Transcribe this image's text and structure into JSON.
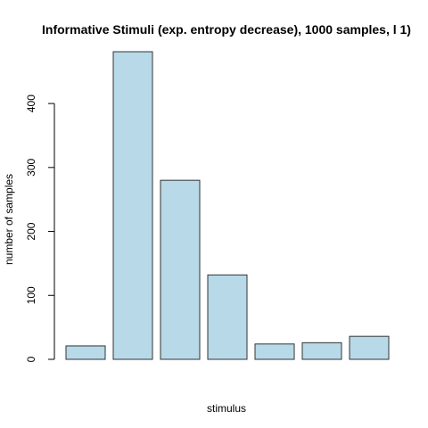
{
  "chart_data": {
    "type": "bar",
    "title": "Informative Stimuli (exp. entropy decrease), 1000 samples, l 1)",
    "xlabel": "stimulus",
    "ylabel": "number of samples",
    "categories": [
      "",
      "",
      "",
      "",
      "",
      "",
      ""
    ],
    "values": [
      21,
      481,
      280,
      132,
      24,
      26,
      36
    ],
    "ylim": [
      0,
      481
    ],
    "yticks": [
      0,
      100,
      200,
      300,
      400
    ],
    "bar_color": "#b7d9e8",
    "grid": false,
    "legend": "none"
  }
}
